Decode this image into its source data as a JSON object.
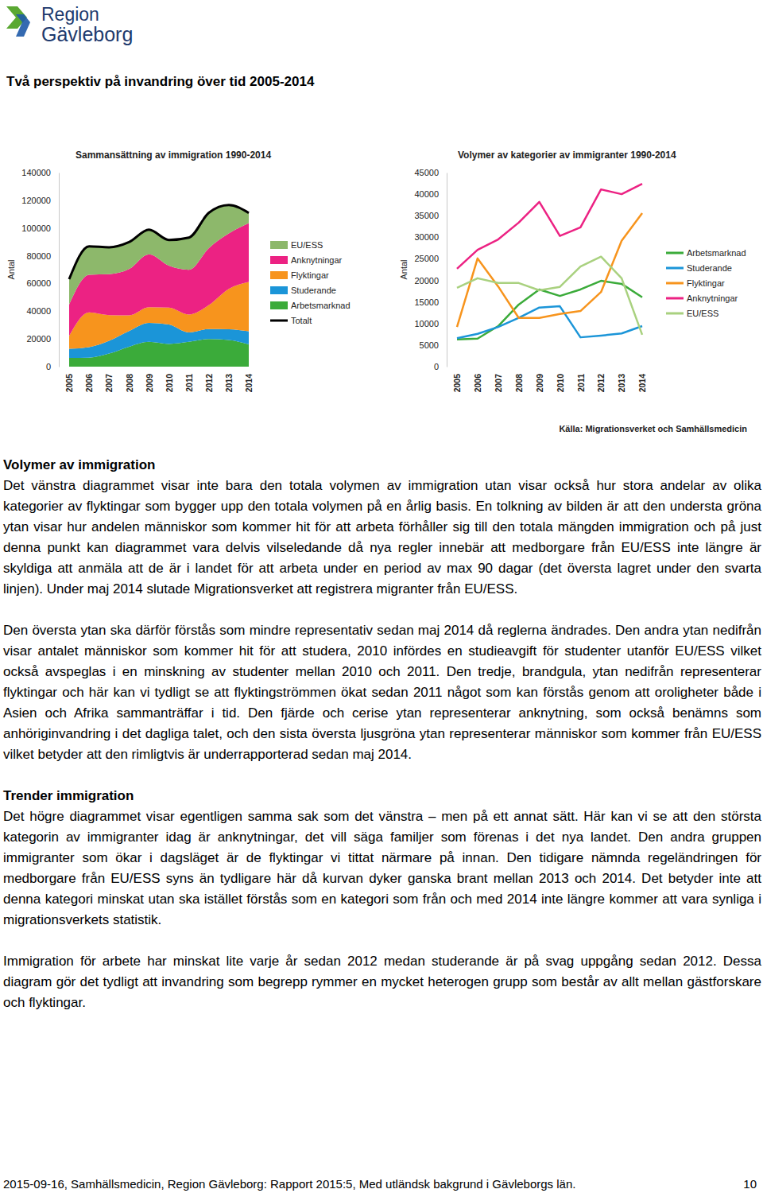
{
  "header": {
    "logo": [
      "Region",
      "Gävleborg"
    ],
    "title": "Två perspektiv på invandring över tid 2005-2014"
  },
  "chart_data": [
    {
      "type": "area",
      "stacked": true,
      "title": "Sammansättning av immigration 1990-2014",
      "ylabel": "Antal",
      "categories": [
        "2005",
        "2006",
        "2007",
        "2008",
        "2009",
        "2010",
        "2011",
        "2012",
        "2013",
        "2014"
      ],
      "ylim": [
        0,
        140000
      ],
      "yticks": [
        0,
        20000,
        40000,
        60000,
        80000,
        100000,
        120000,
        140000
      ],
      "legend": "right",
      "series": [
        {
          "name": "EU/ESS",
          "color": "#8db86b",
          "values": [
            18300,
            20500,
            19400,
            19400,
            17700,
            18500,
            23200,
            25500,
            20500,
            7400
          ]
        },
        {
          "name": "Anknytningar",
          "color": "#ec2283",
          "values": [
            22700,
            27100,
            29500,
            33400,
            38200,
            30300,
            32300,
            41100,
            40000,
            42400
          ]
        },
        {
          "name": "Flyktingar",
          "color": "#f7941d",
          "values": [
            9200,
            25100,
            18600,
            11300,
            11300,
            12200,
            12900,
            17300,
            29200,
            35600
          ]
        },
        {
          "name": "Studerande",
          "color": "#1b95d8",
          "values": [
            6600,
            7600,
            9200,
            11300,
            13700,
            14000,
            6800,
            7200,
            7700,
            9400
          ]
        },
        {
          "name": "Arbetsmarknad",
          "color": "#3bab3a",
          "values": [
            6300,
            6500,
            9400,
            14400,
            17900,
            16400,
            17900,
            19900,
            19200,
            16100
          ]
        },
        {
          "name": "Totalt",
          "type": "line",
          "color": "#000000",
          "values": [
            63100,
            86800,
            86100,
            89800,
            98800,
            91400,
            93100,
            111000,
            116600,
            110900
          ]
        }
      ]
    },
    {
      "type": "line",
      "title": "Volymer av kategorier av immigranter 1990-2014",
      "ylabel": "Antal",
      "categories": [
        "2005",
        "2006",
        "2007",
        "2008",
        "2009",
        "2010",
        "2011",
        "2012",
        "2013",
        "2014"
      ],
      "ylim": [
        0,
        45000
      ],
      "yticks": [
        0,
        5000,
        10000,
        15000,
        20000,
        25000,
        30000,
        35000,
        40000,
        45000
      ],
      "legend": "right",
      "series": [
        {
          "name": "Arbetsmarknad",
          "color": "#3bab3a",
          "values": [
            6300,
            6500,
            9400,
            14400,
            17900,
            16400,
            17900,
            19900,
            19200,
            16100
          ]
        },
        {
          "name": "Studerande",
          "color": "#1b95d8",
          "values": [
            6600,
            7600,
            9200,
            11300,
            13700,
            14000,
            6800,
            7200,
            7700,
            9400
          ]
        },
        {
          "name": "Flyktingar",
          "color": "#f7941d",
          "values": [
            9200,
            25100,
            18600,
            11300,
            11300,
            12200,
            12900,
            17300,
            29200,
            35600
          ]
        },
        {
          "name": "Anknytningar",
          "color": "#ec2283",
          "values": [
            22700,
            27100,
            29500,
            33400,
            38200,
            30300,
            32300,
            41100,
            40000,
            42400
          ]
        },
        {
          "name": "EU/ESS",
          "color": "#a9d17f",
          "values": [
            18300,
            20500,
            19400,
            19400,
            17700,
            18500,
            23200,
            25500,
            20500,
            7400
          ]
        }
      ]
    }
  ],
  "source": "Källa: Migrationsverket och Samhällsmedicin",
  "sections": [
    {
      "heading": "Volymer av immigration",
      "paragraphs": [
        "Det vänstra diagrammet visar inte bara den totala volymen av immigration utan visar också hur stora andelar av olika kategorier av flyktingar som bygger upp den totala volymen på en årlig basis. En tolkning av bilden är att den understa gröna ytan visar hur andelen människor som kommer hit för att arbeta förhåller sig till den totala mängden immigration och på just denna punkt kan diagrammet vara delvis vilseledande då nya regler innebär att medborgare från EU/ESS inte längre är skyldiga att anmäla att de är i landet för att arbeta under en period av max 90 dagar (det översta lagret under den svarta linjen). Under maj 2014 slutade Migrationsverket att registrera migranter från EU/ESS.",
        "Den översta ytan ska därför förstås som mindre representativ sedan maj 2014 då reglerna ändrades. Den andra ytan nedifrån visar antalet människor som kommer hit för att studera, 2010 infördes en studieavgift för studenter utanför EU/ESS vilket också avspeglas i en minskning av studenter mellan 2010 och 2011. Den tredje, brandgula, ytan nedifrån representerar flyktingar och här kan vi tydligt se att flyktingströmmen ökat sedan 2011 något som kan förstås genom att oroligheter både i Asien och Afrika sammanträffar i tid. Den fjärde och cerise ytan representerar anknytning, som också benämns som anhöriginvandring i det dagliga talet, och den sista översta ljusgröna ytan representerar människor som kommer från EU/ESS vilket betyder att den rimligtvis är underrapporterad sedan maj 2014."
      ]
    },
    {
      "heading": "Trender immigration",
      "paragraphs": [
        "Det högre diagrammet visar egentligen samma sak som det vänstra – men på ett annat sätt. Här kan vi se att den största kategorin av immigranter idag är anknytningar, det vill säga familjer som förenas i det nya landet. Den andra gruppen immigranter som ökar i dagsläget är de flyktingar vi tittat närmare på innan. Den tidigare nämnda regeländringen för medborgare från EU/ESS syns än tydligare här då kurvan dyker ganska brant mellan 2013 och 2014. Det betyder inte att denna kategori minskat utan ska istället förstås som en kategori som från och med 2014 inte längre kommer att vara synliga i migrationsverkets statistik.",
        "Immigration för arbete har minskat lite varje år sedan 2012 medan studerande är på svag uppgång sedan 2012. Dessa diagram gör det tydligt att invandring som begrepp rymmer en mycket heterogen grupp som består av allt mellan gästforskare och flyktingar."
      ]
    }
  ],
  "footer": {
    "text": "2015-09-16, Samhällsmedicin, Region Gävleborg: Rapport 2015:5, Med utländsk bakgrund i Gävleborgs län.",
    "page": 10
  }
}
